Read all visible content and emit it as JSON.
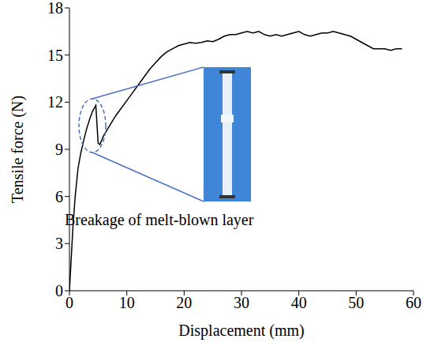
{
  "chart_data": {
    "type": "line",
    "xlabel": "Displacement (mm)",
    "ylabel": "Tensile force (N)",
    "annotation": "Breakage of melt-blown layer",
    "color": "#000000",
    "grid": false,
    "x": [
      0,
      0.3,
      0.6,
      1,
      1.5,
      2,
      2.5,
      3,
      3.5,
      4,
      4.6,
      5.0,
      5.3,
      6,
      7,
      8,
      9,
      10,
      11,
      12,
      13,
      14,
      15,
      16,
      17,
      18,
      19,
      20,
      21,
      22,
      23,
      24,
      25,
      26,
      27,
      28,
      29,
      30,
      31,
      32,
      33,
      34,
      35,
      36,
      37,
      38,
      39,
      40,
      41,
      42,
      43,
      44,
      45,
      46,
      47,
      48,
      49,
      50,
      51,
      52,
      53,
      54,
      55,
      56,
      57,
      58
    ],
    "values": [
      0,
      2,
      4,
      6,
      7.8,
      8.8,
      9.6,
      10.3,
      10.9,
      11.4,
      11.8,
      9.4,
      9.3,
      9.9,
      10.5,
      11.1,
      11.6,
      12.1,
      12.6,
      13.1,
      13.6,
      14.1,
      14.5,
      14.9,
      15.2,
      15.4,
      15.6,
      15.7,
      15.8,
      15.75,
      15.8,
      15.9,
      15.85,
      16.0,
      16.2,
      16.3,
      16.3,
      16.4,
      16.5,
      16.4,
      16.5,
      16.3,
      16.2,
      16.3,
      16.2,
      16.3,
      16.4,
      16.5,
      16.3,
      16.2,
      16.3,
      16.4,
      16.4,
      16.5,
      16.4,
      16.3,
      16.2,
      16.0,
      15.8,
      15.6,
      15.4,
      15.4,
      15.4,
      15.3,
      15.4,
      15.4
    ],
    "xlim": [
      0,
      60
    ],
    "ylim": [
      0,
      18
    ],
    "xticks": [
      0,
      10,
      20,
      30,
      40,
      50,
      60
    ],
    "yticks": [
      0,
      3,
      6,
      9,
      12,
      15,
      18
    ]
  }
}
